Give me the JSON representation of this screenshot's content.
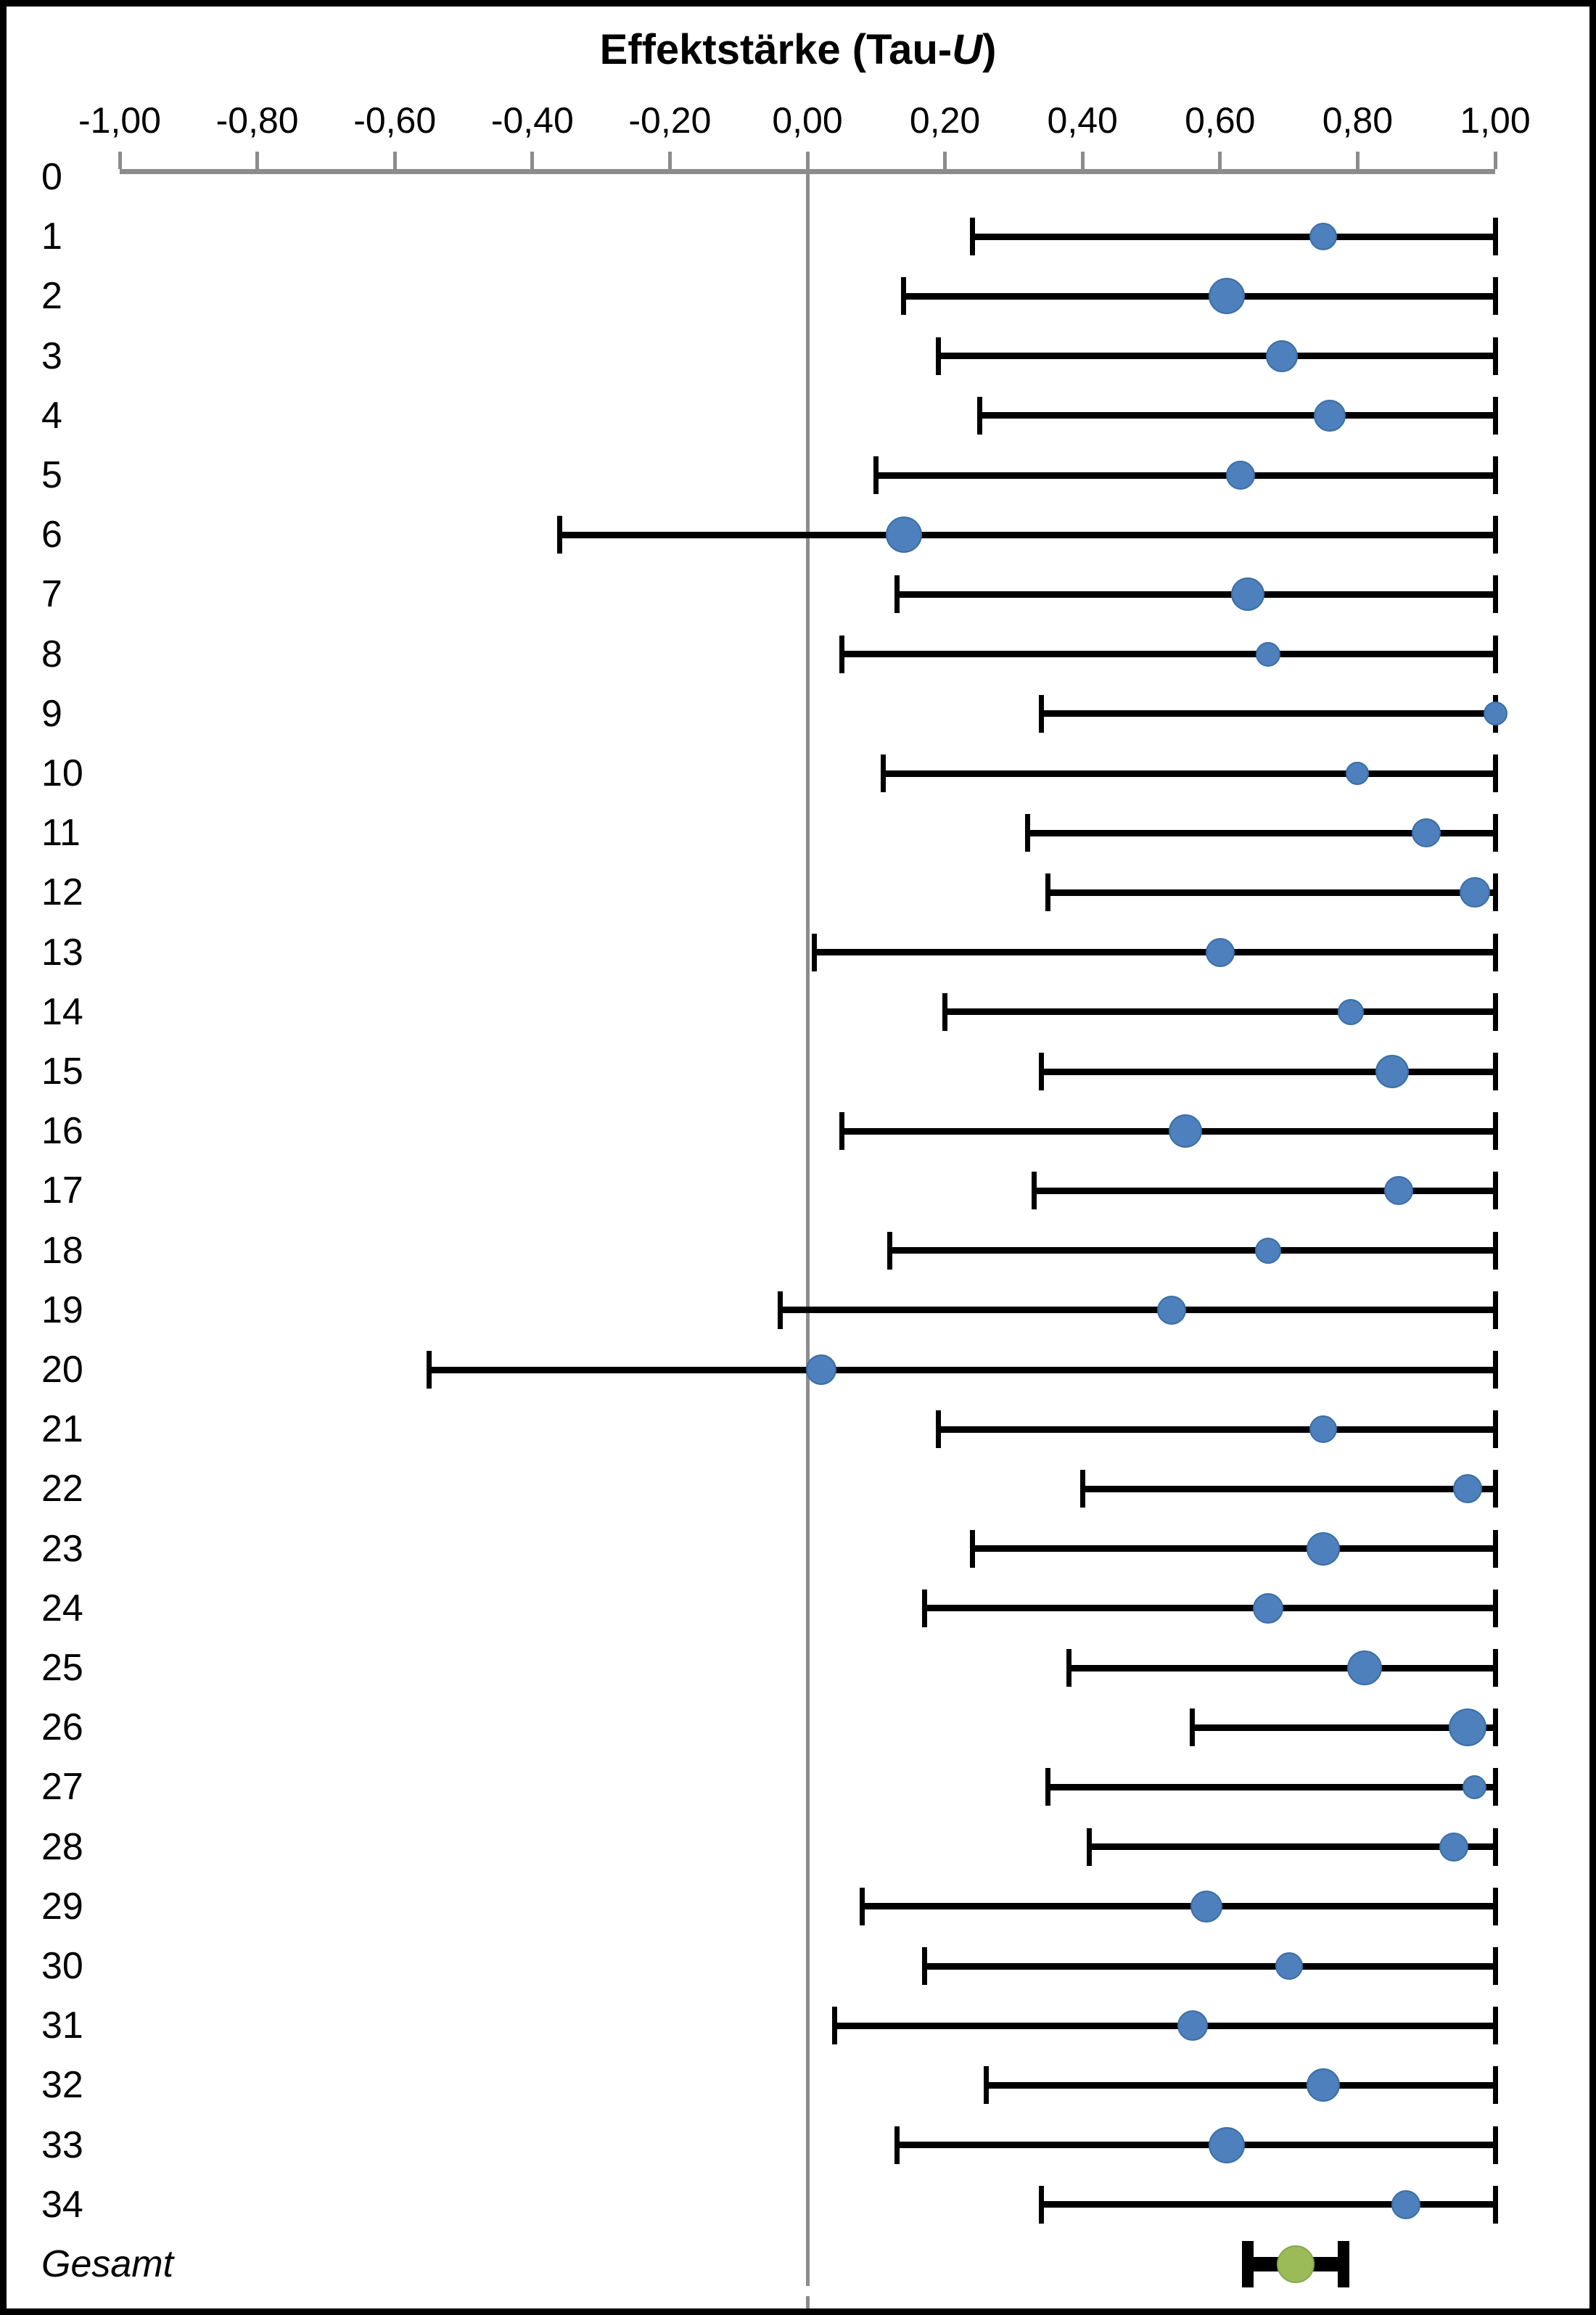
{
  "page": {
    "background_color": "#ffffff",
    "frame_border_color": "#000000"
  },
  "chart_data": {
    "type": "scatter",
    "subtype": "forest-plot",
    "title": "Effektstärke (Tau-U)",
    "title_parts": {
      "prefix": "Effektstärke (Tau-",
      "italic": "U",
      "suffix": ")"
    },
    "xlim": [
      -1.0,
      1.0
    ],
    "x_tick_values": [
      -1.0,
      -0.8,
      -0.6,
      -0.4,
      -0.2,
      0.0,
      0.2,
      0.4,
      0.6,
      0.8,
      1.0
    ],
    "x_tick_labels": [
      "-1,00",
      "-0,80",
      "-0,60",
      "-0,40",
      "-0,20",
      "0,00",
      "0,20",
      "0,40",
      "0,60",
      "0,80",
      "1,00"
    ],
    "grid": false,
    "legend": false,
    "zero_reference_line": 0.0,
    "colors": {
      "study_point_fill": "#4d80bc",
      "study_point_edge": "#3a6ea5",
      "overall_point_fill": "#9bbb59",
      "overall_point_edge": "#87a64b",
      "error_bar": "#000000",
      "axis": "#8c8c8c"
    },
    "rows": [
      {
        "label": "0",
        "value": null,
        "ci_low": null,
        "ci_high": null,
        "marker_size": 0
      },
      {
        "label": "1",
        "value": 0.75,
        "ci_low": 0.24,
        "ci_high": 1.0,
        "marker_size": 38
      },
      {
        "label": "2",
        "value": 0.61,
        "ci_low": 0.14,
        "ci_high": 1.0,
        "marker_size": 50
      },
      {
        "label": "3",
        "value": 0.69,
        "ci_low": 0.19,
        "ci_high": 1.0,
        "marker_size": 44
      },
      {
        "label": "4",
        "value": 0.76,
        "ci_low": 0.25,
        "ci_high": 1.0,
        "marker_size": 44
      },
      {
        "label": "5",
        "value": 0.63,
        "ci_low": 0.1,
        "ci_high": 1.0,
        "marker_size": 40
      },
      {
        "label": "6",
        "value": 0.14,
        "ci_low": -0.36,
        "ci_high": 1.0,
        "marker_size": 50
      },
      {
        "label": "7",
        "value": 0.64,
        "ci_low": 0.13,
        "ci_high": 1.0,
        "marker_size": 46
      },
      {
        "label": "8",
        "value": 0.67,
        "ci_low": 0.05,
        "ci_high": 1.0,
        "marker_size": 34
      },
      {
        "label": "9",
        "value": 1.0,
        "ci_low": 0.34,
        "ci_high": 1.0,
        "marker_size": 33
      },
      {
        "label": "10",
        "value": 0.8,
        "ci_low": 0.11,
        "ci_high": 1.0,
        "marker_size": 32
      },
      {
        "label": "11",
        "value": 0.9,
        "ci_low": 0.32,
        "ci_high": 1.0,
        "marker_size": 40
      },
      {
        "label": "12",
        "value": 0.97,
        "ci_low": 0.35,
        "ci_high": 1.0,
        "marker_size": 42
      },
      {
        "label": "13",
        "value": 0.6,
        "ci_low": 0.01,
        "ci_high": 1.0,
        "marker_size": 40
      },
      {
        "label": "14",
        "value": 0.79,
        "ci_low": 0.2,
        "ci_high": 1.0,
        "marker_size": 36
      },
      {
        "label": "15",
        "value": 0.85,
        "ci_low": 0.34,
        "ci_high": 1.0,
        "marker_size": 46
      },
      {
        "label": "16",
        "value": 0.55,
        "ci_low": 0.05,
        "ci_high": 1.0,
        "marker_size": 46
      },
      {
        "label": "17",
        "value": 0.86,
        "ci_low": 0.33,
        "ci_high": 1.0,
        "marker_size": 40
      },
      {
        "label": "18",
        "value": 0.67,
        "ci_low": 0.12,
        "ci_high": 1.0,
        "marker_size": 36
      },
      {
        "label": "19",
        "value": 0.53,
        "ci_low": -0.04,
        "ci_high": 1.0,
        "marker_size": 40
      },
      {
        "label": "20",
        "value": 0.02,
        "ci_low": -0.55,
        "ci_high": 1.0,
        "marker_size": 42
      },
      {
        "label": "21",
        "value": 0.75,
        "ci_low": 0.19,
        "ci_high": 1.0,
        "marker_size": 38
      },
      {
        "label": "22",
        "value": 0.96,
        "ci_low": 0.4,
        "ci_high": 1.0,
        "marker_size": 40
      },
      {
        "label": "23",
        "value": 0.75,
        "ci_low": 0.24,
        "ci_high": 1.0,
        "marker_size": 46
      },
      {
        "label": "24",
        "value": 0.67,
        "ci_low": 0.17,
        "ci_high": 1.0,
        "marker_size": 42
      },
      {
        "label": "25",
        "value": 0.81,
        "ci_low": 0.38,
        "ci_high": 1.0,
        "marker_size": 48
      },
      {
        "label": "26",
        "value": 0.96,
        "ci_low": 0.56,
        "ci_high": 1.0,
        "marker_size": 52
      },
      {
        "label": "27",
        "value": 0.97,
        "ci_low": 0.35,
        "ci_high": 1.0,
        "marker_size": 33
      },
      {
        "label": "28",
        "value": 0.94,
        "ci_low": 0.41,
        "ci_high": 1.0,
        "marker_size": 40
      },
      {
        "label": "29",
        "value": 0.58,
        "ci_low": 0.08,
        "ci_high": 1.0,
        "marker_size": 44
      },
      {
        "label": "30",
        "value": 0.7,
        "ci_low": 0.17,
        "ci_high": 1.0,
        "marker_size": 38
      },
      {
        "label": "31",
        "value": 0.56,
        "ci_low": 0.04,
        "ci_high": 1.0,
        "marker_size": 42
      },
      {
        "label": "32",
        "value": 0.75,
        "ci_low": 0.26,
        "ci_high": 1.0,
        "marker_size": 46
      },
      {
        "label": "33",
        "value": 0.61,
        "ci_low": 0.13,
        "ci_high": 1.0,
        "marker_size": 50
      },
      {
        "label": "34",
        "value": 0.87,
        "ci_low": 0.34,
        "ci_high": 1.0,
        "marker_size": 40
      },
      {
        "label": "Gesamt",
        "value": 0.71,
        "ci_low": 0.64,
        "ci_high": 0.78,
        "marker_size": 52,
        "overall": true
      }
    ]
  }
}
